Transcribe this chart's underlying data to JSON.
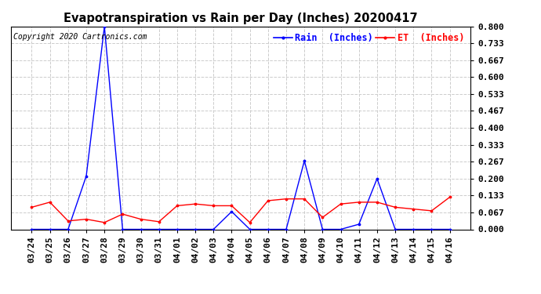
{
  "title": "Evapotranspiration vs Rain per Day (Inches) 20200417",
  "copyright": "Copyright 2020 Cartronics.com",
  "legend_rain": "Rain  (Inches)",
  "legend_et": "ET  (Inches)",
  "x_labels": [
    "03/24",
    "03/25",
    "03/26",
    "03/27",
    "03/28",
    "03/29",
    "03/30",
    "03/31",
    "04/01",
    "04/02",
    "04/03",
    "04/04",
    "04/05",
    "04/06",
    "04/07",
    "04/08",
    "04/09",
    "04/10",
    "04/11",
    "04/12",
    "04/13",
    "04/14",
    "04/15",
    "04/16"
  ],
  "rain_values": [
    0.0,
    0.0,
    0.0,
    0.21,
    0.8,
    0.0,
    0.0,
    0.0,
    0.0,
    0.0,
    0.0,
    0.07,
    0.0,
    0.0,
    0.0,
    0.27,
    0.0,
    0.0,
    0.02,
    0.2,
    0.0,
    0.0,
    0.0,
    0.0
  ],
  "et_values": [
    0.087,
    0.107,
    0.033,
    0.04,
    0.027,
    0.06,
    0.04,
    0.03,
    0.093,
    0.1,
    0.093,
    0.093,
    0.027,
    0.113,
    0.12,
    0.12,
    0.047,
    0.1,
    0.107,
    0.107,
    0.087,
    0.08,
    0.073,
    0.127
  ],
  "rain_color": "#0000ff",
  "et_color": "#ff0000",
  "ylim_min": 0.0,
  "ylim_max": 0.8,
  "yticks": [
    0.0,
    0.067,
    0.133,
    0.2,
    0.267,
    0.333,
    0.4,
    0.467,
    0.533,
    0.6,
    0.667,
    0.733,
    0.8
  ],
  "ytick_labels": [
    "0.000",
    "0.067",
    "0.133",
    "0.200",
    "0.267",
    "0.333",
    "0.400",
    "0.467",
    "0.533",
    "0.600",
    "0.667",
    "0.733",
    "0.800"
  ],
  "background_color": "#ffffff",
  "grid_color": "#cccccc",
  "title_fontsize": 10.5,
  "tick_fontsize": 8,
  "copyright_fontsize": 7
}
